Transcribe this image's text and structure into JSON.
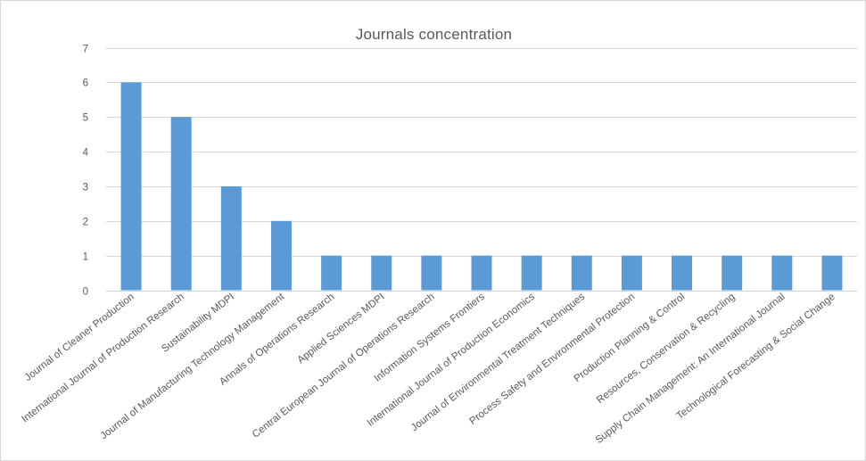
{
  "chart_data": {
    "type": "bar",
    "title": "Journals concentration",
    "xlabel": "",
    "ylabel": "",
    "ylim": [
      0,
      7
    ],
    "yticks": [
      "0",
      "1",
      "2",
      "3",
      "4",
      "5",
      "6",
      "7"
    ],
    "grid": true,
    "legend": "none",
    "bar_color": "#5b9bd5",
    "categories": [
      "Journal of Cleaner Production",
      "International Journal of Production Research",
      "Sustainability MDPI",
      "Journal of Manufacturing Technology Management",
      "Annals of Operations Research",
      "Applied Sciences MDPI",
      "Central European Journal of Operations Research",
      "Information Systems Frontiers",
      "International Journal of Production Economics",
      "Journal of Environmental Treatment Techniques",
      "Process Safety and Environmental Protection",
      "Production Planning & Control",
      "Resources, Conservation & Recycling",
      "Supply Chain Management: An International Journal",
      "Technological Forecasting & Social Change"
    ],
    "values": [
      6,
      5,
      3,
      2,
      1,
      1,
      1,
      1,
      1,
      1,
      1,
      1,
      1,
      1,
      1
    ]
  }
}
